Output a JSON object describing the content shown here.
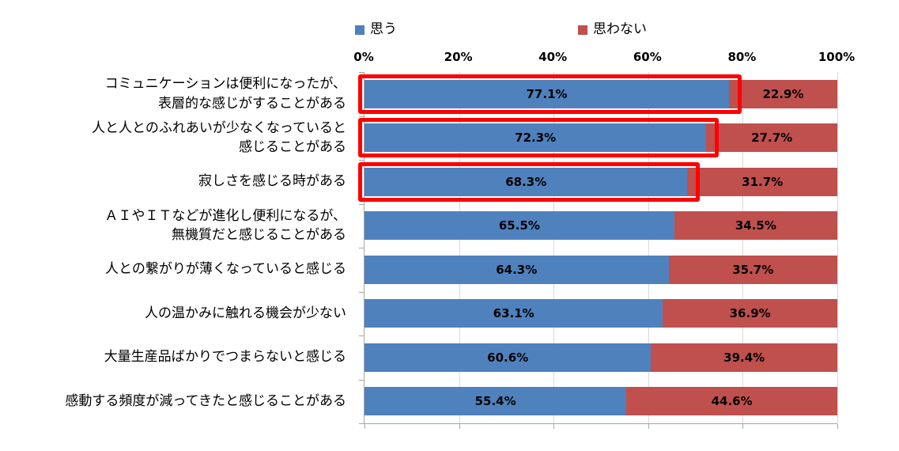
{
  "chart_data": {
    "type": "bar",
    "orientation": "horizontal",
    "stacked": true,
    "title": "",
    "xlabel": "",
    "ylabel": "",
    "xlim": [
      0,
      100
    ],
    "x_ticks": [
      "0%",
      "20%",
      "40%",
      "60%",
      "80%",
      "100%"
    ],
    "grid": true,
    "legend_position": "top",
    "categories": [
      "コミュニケーションは便利になったが、\n表層的な感じがすることがある",
      "人と人とのふれあいが少なくなっていると\n感じることがある",
      "寂しさを感じる時がある",
      "ＡＩやＩＴなどが進化し便利になるが、\n無機質だと感じることがある",
      "人との繋がりが薄くなっていると感じる",
      "人の温かみに触れる機会が少ない",
      "大量生産品ばかりでつまらないと感じる",
      "感動する頻度が減ってきたと感じることがある"
    ],
    "series": [
      {
        "name": "思う",
        "color": "#4F81BD",
        "values": [
          77.1,
          72.3,
          68.3,
          65.5,
          64.3,
          63.1,
          60.6,
          55.4
        ]
      },
      {
        "name": "思わない",
        "color": "#C0504D",
        "values": [
          22.9,
          27.7,
          31.7,
          34.5,
          35.7,
          36.9,
          39.4,
          44.6
        ]
      }
    ],
    "value_label_format": "0.0%",
    "highlighted_rows": [
      0,
      1,
      2
    ],
    "highlight_color": "#FF0000"
  },
  "colors": {
    "background": "#FFFFFF",
    "gridline": "#D9D9D9",
    "axis": "#A6A6A6",
    "text": "#000000"
  }
}
